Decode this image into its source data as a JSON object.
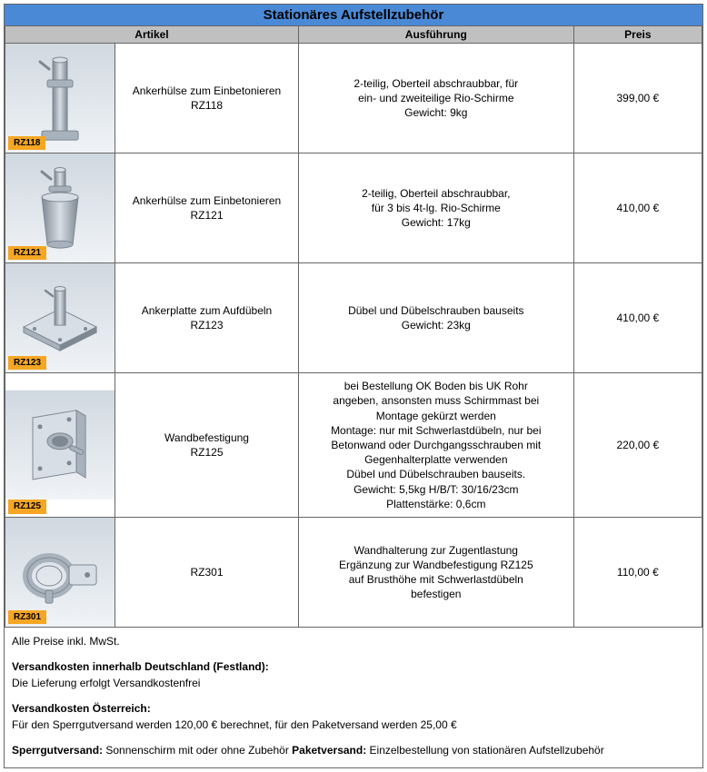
{
  "title": "Stationäres Aufstellzubehör",
  "headers": {
    "image": "",
    "artikel": "Artikel",
    "ausfuehrung": "Ausführung",
    "preis": "Preis"
  },
  "colors": {
    "header_bg": "#4a89d6",
    "subheader_bg": "#c0c0c0",
    "border": "#666666",
    "tag_bg": "#f5a623",
    "metal_light": "#d8dee6",
    "metal_mid": "#a8b2bd",
    "metal_dark": "#7e8892",
    "grad_top": "#d0d8e0",
    "grad_bot": "#f0f3f6"
  },
  "rows": [
    {
      "code": "RZ118",
      "artikel": "Ankerhülse zum Einbetonieren\nRZ118",
      "ausfuehrung": "2-teilig, Oberteil abschraubbar, für\nein- und zweiteilige Rio-Schirme\nGewicht: 9kg",
      "preis": "399,00 €",
      "icon": "sleeve_tall"
    },
    {
      "code": "RZ121",
      "artikel": "Ankerhülse zum Einbetonieren\nRZ121",
      "ausfuehrung": "2-teilig, Oberteil abschraubbar,\nfür 3 bis 4t-lg. Rio-Schirme\nGewicht: 17kg",
      "preis": "410,00 €",
      "icon": "sleeve_wide"
    },
    {
      "code": "RZ123",
      "artikel": "Ankerplatte zum Aufdübeln\nRZ123",
      "ausfuehrung": "Dübel und Dübelschrauben bauseits\nGewicht: 23kg",
      "preis": "410,00 €",
      "icon": "plate"
    },
    {
      "code": "RZ125",
      "artikel": "Wandbefestigung\nRZ125",
      "ausfuehrung": "bei Bestellung OK Boden bis UK Rohr\nangeben, ansonsten muss Schirmmast bei\nMontage gekürzt werden\nMontage: nur mit Schwerlastdübeln, nur bei\nBetonwand oder Durchgangsschrauben mit\nGegenhalterplatte verwenden\nDübel und Dübelschrauben bauseits.\nGewicht: 5,5kg H/B/T: 30/16/23cm\nPlattenstärke: 0,6cm",
      "preis": "220,00 €",
      "icon": "wall"
    },
    {
      "code": "RZ301",
      "artikel": "RZ301",
      "ausfuehrung": "Wandhalterung zur Zugentlastung\nErgänzung zur Wandbefestigung RZ125\nauf Brusthöhe mit Schwerlastdübeln\nbefestigen",
      "preis": "110,00 €",
      "icon": "clamp"
    }
  ],
  "footer": {
    "vat": "Alle Preise inkl. MwSt.",
    "de_head": "Versandkosten innerhalb Deutschland (Festland):",
    "de_body": "Die Lieferung erfolgt Versandkostenfrei",
    "at_head": "Versandkosten Österreich:",
    "at_body": "Für den Sperrgutversand werden 120,00 € berechnet, für den  Paketversand werden 25,00 €",
    "ship1_label": "Sperrgutversand:",
    "ship1_body": " Sonnenschirm mit oder ohne Zubehör ",
    "ship2_label": "Paketversand:",
    "ship2_body": " Einzelbestellung von stationären Aufstellzubehör"
  }
}
